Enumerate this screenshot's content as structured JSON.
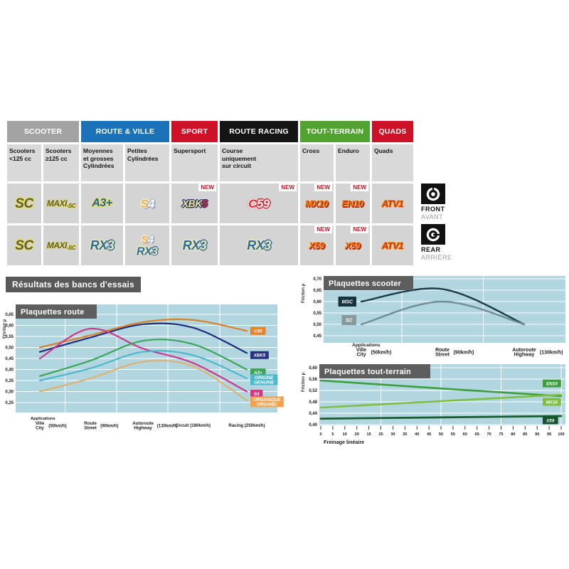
{
  "table": {
    "new_label": "NEW",
    "groups": [
      {
        "label": "SCOOTER",
        "color": "#A3A3A3",
        "span": 2
      },
      {
        "label": "ROUTE & VILLE",
        "color": "#1B72B8",
        "span": 2
      },
      {
        "label": "SPORT",
        "color": "#CE1126",
        "span": 1
      },
      {
        "label": "ROUTE RACING",
        "color": "#151515",
        "span": 1
      },
      {
        "label": "TOUT-TERRAIN",
        "color": "#4FA32E",
        "span": 2
      },
      {
        "label": "QUADS",
        "color": "#CE1126",
        "span": 1
      }
    ],
    "subheaders": [
      "Scooters\n<125 cc",
      "Scooters\n≥125 cc",
      "Moyennes\net grosses\nCylindrées",
      "Petites\nCylindrées",
      "Supersport",
      "Course\nuniquement\nsur circuit",
      "Cross",
      "Enduro",
      "Quads"
    ],
    "front_row": [
      {
        "logos": [
          [
            {
              "t": "SC",
              "s": "sc"
            }
          ]
        ]
      },
      {
        "logos": [
          [
            {
              "t": "MAXI",
              "s": "maxi"
            },
            {
              "t": "-SC",
              "s": "maxisfx"
            }
          ]
        ]
      },
      {
        "logos": [
          [
            {
              "t": "A3+",
              "s": "a3"
            }
          ]
        ]
      },
      {
        "logos": [
          [
            {
              "t": "S",
              "s": "s4s"
            },
            {
              "t": "4",
              "s": "s44"
            }
          ]
        ]
      },
      {
        "new": true,
        "logos": [
          [
            {
              "t": "XBK",
              "s": "xbk"
            },
            {
              "t": "5",
              "s": "xbk5"
            }
          ]
        ]
      },
      {
        "new": true,
        "logos": [
          [
            {
              "t": "C",
              "s": "c59c"
            },
            {
              "t": "59",
              "s": "c5959"
            }
          ]
        ]
      },
      {
        "new": true,
        "logos": [
          [
            {
              "t": "MX10",
              "s": "mx"
            }
          ]
        ]
      },
      {
        "new": true,
        "logos": [
          [
            {
              "t": "EN10",
              "s": "mx"
            }
          ]
        ]
      },
      {
        "logos": [
          [
            {
              "t": "ATV1",
              "s": "atv"
            }
          ]
        ]
      }
    ],
    "rear_row": [
      {
        "logos": [
          [
            {
              "t": "SC",
              "s": "sc"
            }
          ]
        ]
      },
      {
        "logos": [
          [
            {
              "t": "MAXI",
              "s": "maxi"
            },
            {
              "t": "-SC",
              "s": "maxisfx"
            }
          ]
        ]
      },
      {
        "logos": [
          [
            {
              "t": "RX",
              "s": "rx"
            },
            {
              "t": "3",
              "s": "rx3"
            }
          ]
        ]
      },
      {
        "stack": true,
        "logos": [
          [
            {
              "t": "S",
              "s": "s4s"
            },
            {
              "t": "4",
              "s": "s44"
            }
          ],
          [
            {
              "t": "RX",
              "s": "rx"
            },
            {
              "t": "3",
              "s": "rx3"
            }
          ]
        ]
      },
      {
        "logos": [
          [
            {
              "t": "RX",
              "s": "rx"
            },
            {
              "t": "3",
              "s": "rx3"
            }
          ]
        ]
      },
      {
        "logos": [
          [
            {
              "t": "RX",
              "s": "rx"
            },
            {
              "t": "3",
              "s": "rx3"
            }
          ]
        ]
      },
      {
        "new": true,
        "logos": [
          [
            {
              "t": "X59",
              "s": "mx"
            }
          ]
        ]
      },
      {
        "new": true,
        "logos": [
          [
            {
              "t": "X59",
              "s": "mx"
            }
          ]
        ]
      },
      {
        "logos": [
          [
            {
              "t": "ATV1",
              "s": "atv"
            }
          ]
        ]
      }
    ]
  },
  "side_labels": {
    "front_en": "FRONT",
    "front_fr": "AVANT",
    "rear_en": "REAR",
    "rear_fr": "ARRIÈRE"
  },
  "results_title": "Résultats des bancs d'essais",
  "chart_data": [
    {
      "id": "route",
      "type": "line",
      "title": "Plaquettes route",
      "ylabel": "Friction µ",
      "applications_label": "Applications",
      "ylim": [
        0.25,
        0.65
      ],
      "yticks": [
        0.65,
        0.6,
        0.55,
        0.5,
        0.45,
        0.4,
        0.35,
        0.3,
        0.25
      ],
      "grid": true,
      "legend_position": "right",
      "categories": [
        {
          "fr": "Ville",
          "en": "City",
          "speed": "(50km/h)"
        },
        {
          "fr": "Route",
          "en": "Street",
          "speed": "(90km/h)"
        },
        {
          "fr": "Autoroute",
          "en": "Highway",
          "speed": "(130km/h)"
        },
        {
          "fr": "Circuit",
          "en": "",
          "speed": "(180km/h)"
        },
        {
          "fr": "Racing",
          "en": "",
          "speed": "(250km/h)"
        }
      ],
      "series": [
        {
          "name": "C59",
          "tag": "C59",
          "color": "#D9822B",
          "tag_bg": "#E5832C",
          "values": [
            0.5,
            0.555,
            0.615,
            0.625,
            0.575
          ]
        },
        {
          "name": "XBK5",
          "tag": "XBK5",
          "color": "#1F2E7D",
          "tag_bg": "#28327E",
          "values": [
            0.48,
            0.545,
            0.605,
            0.59,
            0.475
          ]
        },
        {
          "name": "S4",
          "tag": "S4",
          "color": "#CC3A8E",
          "tag_bg": "#D23A83",
          "values": [
            0.45,
            0.585,
            0.495,
            0.43,
            0.3
          ]
        },
        {
          "name": "A3+",
          "tag": "A3+",
          "color": "#3CA559",
          "tag_bg": "#3CA559",
          "values": [
            0.37,
            0.44,
            0.53,
            0.515,
            0.4
          ]
        },
        {
          "name": "ORIGINE GENUINE",
          "tag": "ORIGINE\nGENUINE",
          "color": "#4DB7CD",
          "tag_bg": "#4DB7CD",
          "values": [
            0.35,
            0.405,
            0.48,
            0.465,
            0.36
          ]
        },
        {
          "name": "ORGANIQUE ORGANIC",
          "tag": "ORGANIQUE\nORGANIC",
          "color": "#DCB26E",
          "tag_bg": "#F2A24D",
          "values": [
            0.3,
            0.36,
            0.435,
            0.415,
            0.26
          ]
        }
      ]
    },
    {
      "id": "scooter",
      "type": "line",
      "title": "Plaquettes scooter",
      "ylabel": "Friction µ",
      "applications_label": "Applications",
      "ylim": [
        0.45,
        0.7
      ],
      "yticks": [
        0.7,
        0.65,
        0.6,
        0.55,
        0.5,
        0.45
      ],
      "grid": true,
      "legend_position": "left-of-line-start",
      "categories": [
        {
          "fr": "Ville",
          "en": "City",
          "speed": "(50km/h)"
        },
        {
          "fr": "Route",
          "en": "Street",
          "speed": "(90km/h)"
        },
        {
          "fr": "Autoroute",
          "en": "Highway",
          "speed": "(130km/h)"
        }
      ],
      "series": [
        {
          "name": "MSC",
          "tag": "MSC",
          "color": "#1C3B46",
          "tag_bg": "#16323C",
          "values": [
            0.6,
            0.655,
            0.5
          ]
        },
        {
          "name": "SC",
          "tag": "SC",
          "color": "#6F8F99",
          "tag_bg": "#86999F",
          "values": [
            0.5,
            0.6,
            0.5
          ]
        }
      ]
    },
    {
      "id": "offroad",
      "type": "line",
      "title": "Plaquettes tout-terrain",
      "ylabel": "Friction µ",
      "xlabel": "Freinage linéaire",
      "ylim": [
        0.4,
        0.6
      ],
      "yticks": [
        0.6,
        0.56,
        0.52,
        0.48,
        0.44,
        0.4
      ],
      "xlim": [
        0,
        100
      ],
      "xtick_labels": [
        "0",
        "5",
        "10",
        "20",
        "15",
        "25",
        "30",
        "35",
        "40",
        "45",
        "50",
        "55",
        "60",
        "65",
        "70",
        "75",
        "80",
        "85",
        "90",
        "95",
        "100"
      ],
      "grid": true,
      "legend_position": "right-inside",
      "series": [
        {
          "name": "EN10",
          "tag": "EN10",
          "color": "#3D9E3C",
          "tag_bg": "#3D9E3C",
          "x": [
            0,
            50,
            100
          ],
          "values": [
            0.555,
            0.527,
            0.5
          ]
        },
        {
          "name": "MX10",
          "tag": "MX10",
          "color": "#7DBF42",
          "tag_bg": "#7DBF42",
          "x": [
            0,
            50,
            100
          ],
          "values": [
            0.46,
            0.4825,
            0.505
          ]
        },
        {
          "name": "X59",
          "tag": "X59",
          "color": "#175C2F",
          "tag_bg": "#14532D",
          "x": [
            0,
            50,
            100
          ],
          "values": [
            0.421,
            0.4255,
            0.43
          ]
        }
      ]
    }
  ]
}
